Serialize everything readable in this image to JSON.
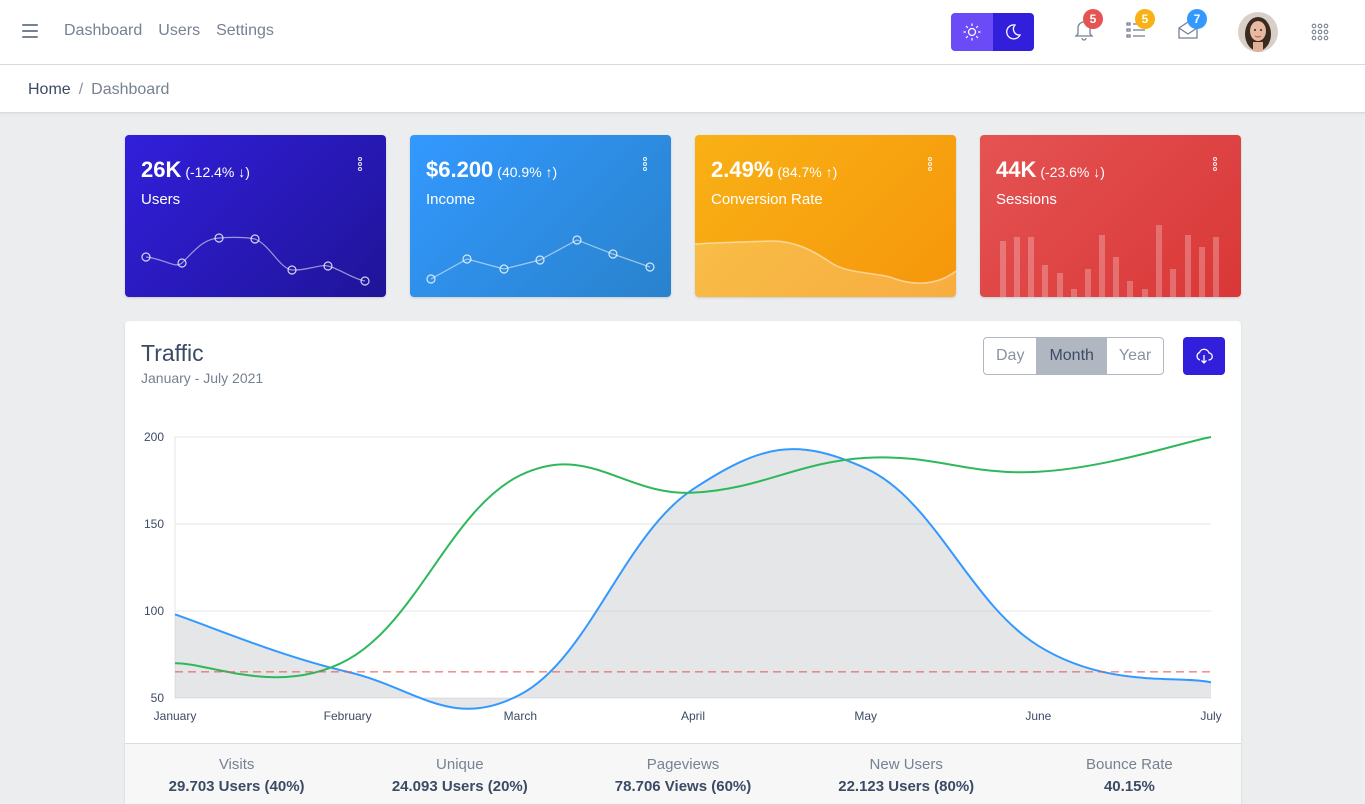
{
  "header": {
    "nav": [
      "Dashboard",
      "Users",
      "Settings"
    ],
    "badges": {
      "notifications": "5",
      "tasks": "5",
      "messages": "7"
    }
  },
  "breadcrumb": {
    "home": "Home",
    "separator": "/",
    "current": "Dashboard"
  },
  "widgets": [
    {
      "value": "26K",
      "delta": "(-12.4% ↓)",
      "label": "Users",
      "color": "#321fdb"
    },
    {
      "value": "$6.200",
      "delta": "(40.9% ↑)",
      "label": "Income",
      "color": "#2e8ae6"
    },
    {
      "value": "2.49%",
      "delta": "(84.7% ↑)",
      "label": "Conversion Rate",
      "color": "#f9b115"
    },
    {
      "value": "44K",
      "delta": "(-23.6% ↓)",
      "label": "Sessions",
      "color": "#e55353"
    }
  ],
  "traffic": {
    "title": "Traffic",
    "subtitle": "January - July 2021",
    "range_options": [
      "Day",
      "Month",
      "Year"
    ],
    "range_selected": "Month",
    "stats": [
      {
        "title": "Visits",
        "value": "29.703 Users (40%)"
      },
      {
        "title": "Unique",
        "value": "24.093 Users (20%)"
      },
      {
        "title": "Pageviews",
        "value": "78.706 Views (60%)"
      },
      {
        "title": "New Users",
        "value": "22.123 Users (80%)"
      },
      {
        "title": "Bounce Rate",
        "value": "40.15%"
      }
    ]
  },
  "chart_data": {
    "type": "line",
    "categories": [
      "January",
      "February",
      "March",
      "April",
      "May",
      "June",
      "July"
    ],
    "ylim": [
      50,
      200
    ],
    "yticks": [
      50,
      100,
      150,
      200
    ],
    "series": [
      {
        "values": [
          98,
          65,
          52,
          170,
          182,
          80,
          59
        ],
        "color": "#39f",
        "fill": true
      },
      {
        "values": [
          70,
          72,
          178,
          168,
          188,
          180,
          200
        ],
        "color": "#2eb85c",
        "fill": false
      },
      {
        "values": [
          65,
          65,
          65,
          65,
          65,
          65,
          65
        ],
        "color": "#e55353",
        "dashed": true
      }
    ],
    "grid": true
  }
}
